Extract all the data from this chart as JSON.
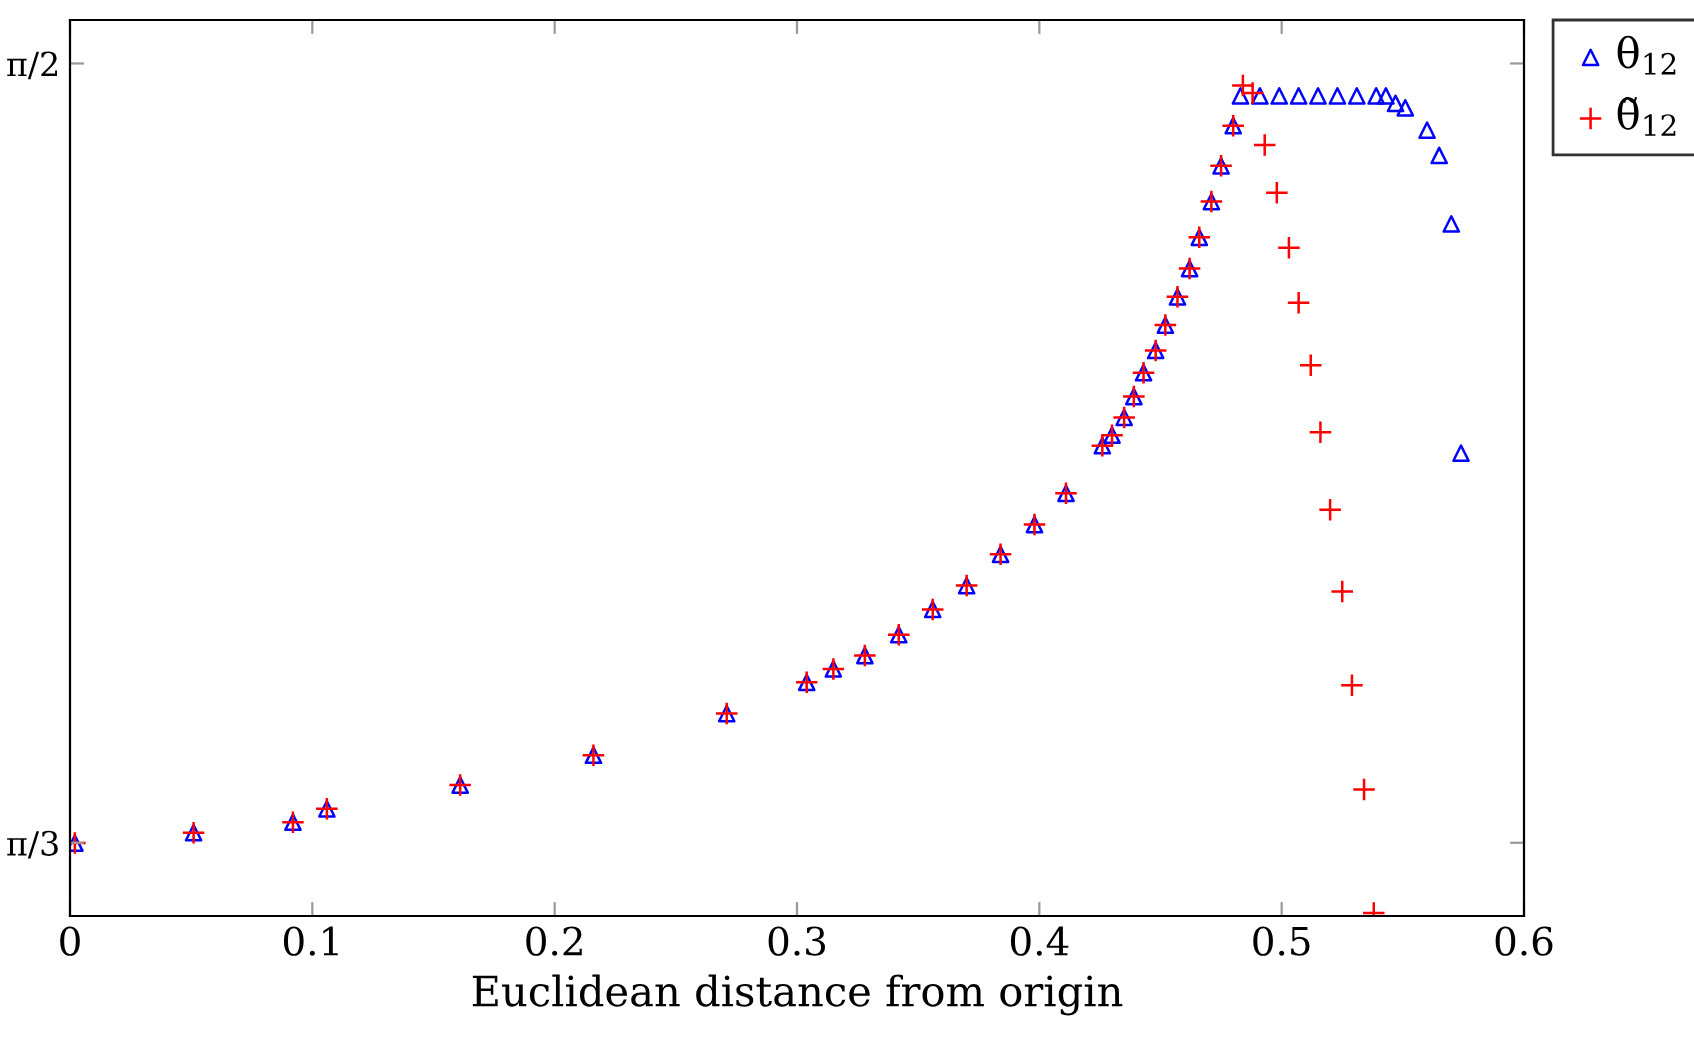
{
  "chart_data": {
    "type": "scatter",
    "xlabel": "Euclidean distance from origin",
    "xlim": [
      0,
      0.6
    ],
    "ylim": [
      0.998,
      1.6
    ],
    "xticks": [
      0,
      0.1,
      0.2,
      0.3,
      0.4,
      0.5,
      0.6
    ],
    "yticks": [
      {
        "value": 1.0472,
        "label": "π/3"
      },
      {
        "value": 1.5708,
        "label": "π/2"
      }
    ],
    "grid": false,
    "legend": "top right",
    "series": [
      {
        "name": "θ$_{12}$",
        "color": "#0000ff",
        "marker": "triangle",
        "x": [
          0.002,
          0.051,
          0.092,
          0.106,
          0.161,
          0.216,
          0.271,
          0.304,
          0.315,
          0.328,
          0.342,
          0.356,
          0.37,
          0.384,
          0.398,
          0.411,
          0.426,
          0.43,
          0.435,
          0.439,
          0.443,
          0.448,
          0.452,
          0.457,
          0.462,
          0.466,
          0.471,
          0.475,
          0.48,
          0.483,
          0.491,
          0.499,
          0.507,
          0.515,
          0.523,
          0.531,
          0.539,
          0.543,
          0.547,
          0.551,
          0.56,
          0.565,
          0.57,
          0.574
        ],
        "values": [
          1.047,
          1.054,
          1.061,
          1.07,
          1.086,
          1.106,
          1.134,
          1.155,
          1.164,
          1.173,
          1.187,
          1.204,
          1.22,
          1.241,
          1.261,
          1.282,
          1.314,
          1.321,
          1.333,
          1.347,
          1.363,
          1.378,
          1.395,
          1.414,
          1.433,
          1.454,
          1.478,
          1.502,
          1.529,
          1.549,
          1.549,
          1.549,
          1.549,
          1.549,
          1.549,
          1.549,
          1.549,
          1.549,
          1.544,
          1.541,
          1.526,
          1.509,
          1.463,
          1.309
        ]
      },
      {
        "name": "θ̃$_{12}$",
        "color": "#ff0000",
        "marker": "cross",
        "x": [
          0.002,
          0.051,
          0.092,
          0.106,
          0.161,
          0.216,
          0.271,
          0.304,
          0.315,
          0.328,
          0.342,
          0.356,
          0.37,
          0.384,
          0.398,
          0.411,
          0.426,
          0.43,
          0.435,
          0.439,
          0.443,
          0.448,
          0.452,
          0.457,
          0.462,
          0.466,
          0.471,
          0.475,
          0.48,
          0.484,
          0.488,
          0.493,
          0.498,
          0.503,
          0.507,
          0.512,
          0.516,
          0.52,
          0.525,
          0.529,
          0.534,
          0.538
        ],
        "values": [
          1.047,
          1.054,
          1.061,
          1.07,
          1.086,
          1.106,
          1.134,
          1.155,
          1.164,
          1.173,
          1.187,
          1.204,
          1.22,
          1.241,
          1.261,
          1.282,
          1.314,
          1.321,
          1.333,
          1.347,
          1.363,
          1.378,
          1.395,
          1.414,
          1.433,
          1.454,
          1.478,
          1.502,
          1.529,
          1.556,
          1.551,
          1.516,
          1.484,
          1.447,
          1.41,
          1.368,
          1.323,
          1.271,
          1.216,
          1.153,
          1.083,
          1.0
        ]
      }
    ]
  }
}
